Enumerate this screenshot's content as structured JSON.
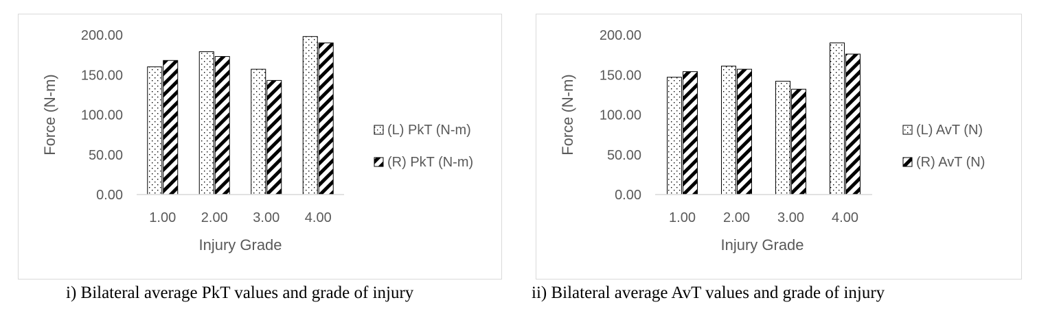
{
  "chart_data": [
    {
      "type": "bar",
      "caption": "i) Bilateral average PkT values and grade of injury",
      "xlabel": "Injury Grade",
      "ylabel": "Force (N-m)",
      "categories": [
        "1.00",
        "2.00",
        "3.00",
        "4.00"
      ],
      "ylim": [
        0,
        200
      ],
      "yticks": [
        "0.00",
        "50.00",
        "100.00",
        "150.00",
        "200.00"
      ],
      "grid": false,
      "legend_position": "right",
      "series": [
        {
          "name": "(L) PkT (N-m)",
          "values": [
            160,
            179,
            157,
            198
          ],
          "pattern": "dots"
        },
        {
          "name": "(R) PkT (N-m)",
          "values": [
            168,
            173,
            143,
            190
          ],
          "pattern": "diagonal-stripes"
        }
      ]
    },
    {
      "type": "bar",
      "caption": "ii) Bilateral average AvT values and grade of injury",
      "xlabel": "Injury Grade",
      "ylabel": "Force (N-m)",
      "categories": [
        "1.00",
        "2.00",
        "3.00",
        "4.00"
      ],
      "ylim": [
        0,
        200
      ],
      "yticks": [
        "0.00",
        "50.00",
        "100.00",
        "150.00",
        "200.00"
      ],
      "grid": false,
      "legend_position": "right",
      "series": [
        {
          "name": "(L) AvT (N)",
          "values": [
            147,
            161,
            142,
            190
          ],
          "pattern": "dots"
        },
        {
          "name": "(R) AvT (N)",
          "values": [
            154,
            157,
            132,
            176
          ],
          "pattern": "diagonal-stripes"
        }
      ]
    }
  ],
  "colors": {
    "axis_text": "#595959",
    "bar_outline": "#000000",
    "frame": "#d9d9d9"
  }
}
